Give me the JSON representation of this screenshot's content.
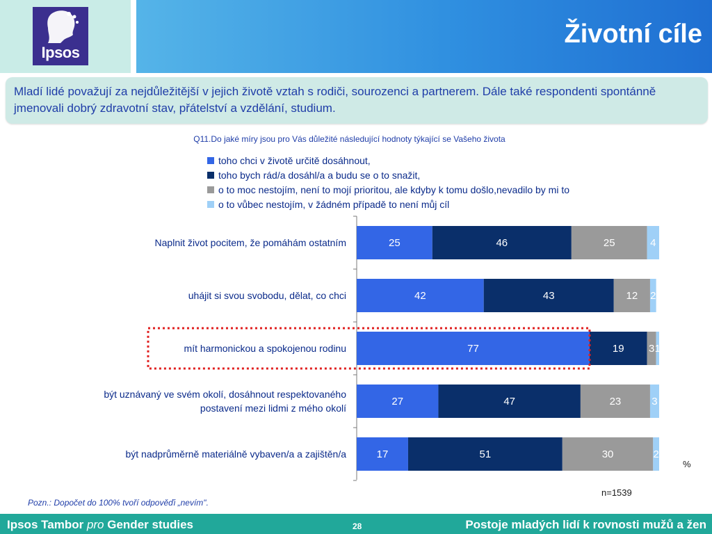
{
  "header": {
    "logo_text": "Ipsos",
    "title": "Životní cíle"
  },
  "summary": "Mladí lidé považují za nejdůležitější v jejich životě vztah s rodiči, sourozenci a partnerem. Dále také respondenti spontánně jmenovali dobrý zdravotní stav, přátelství a vzdělání, studium.",
  "question": "Q11.Do jaké míry jsou pro Vás důležité následující hodnoty týkající se Vašeho života",
  "chart_data": {
    "type": "bar",
    "orientation": "horizontal",
    "stacked": true,
    "categories": [
      "Naplnit život pocitem, že pomáhám ostatním",
      "uhájit si svou svobodu, dělat, co chci",
      "mít harmonickou a spokojenou rodinu",
      "být uznávaný ve svém okolí, dosáhnout respektovaného postavení mezi lidmi z mého okolí",
      "být nadprůměrně materiálně vybaven/a a zajištěn/a"
    ],
    "series": [
      {
        "name": "toho chci v životě určitě dosáhnout,",
        "color": "#3366e6",
        "values": [
          25,
          42,
          77,
          27,
          17
        ]
      },
      {
        "name": "toho bych rád/a dosáhl/a a budu se o to snažit,",
        "color": "#0a2f6a",
        "values": [
          46,
          43,
          19,
          47,
          51
        ]
      },
      {
        "name": "o to moc nestojím, není to mojí prioritou, ale kdyby k tomu došlo,nevadilo by mi to",
        "color": "#9a9a9a",
        "values": [
          25,
          12,
          3,
          23,
          30
        ]
      },
      {
        "name": "o to vůbec nestojím, v žádném případě to není můj cíl",
        "color": "#9fd0f7",
        "values": [
          4,
          2,
          1,
          3,
          2
        ]
      }
    ],
    "value_unit": "%",
    "xlim": [
      0,
      100
    ],
    "legend_position": "top",
    "highlighted_category": "mít harmonickou a spokojenou rodinu"
  },
  "percent_label": "%",
  "sample_size": "n=1539",
  "note": "Pozn.: Dopočet do 100% tvoří odpověďi „nevím\".",
  "footer": {
    "brand": "Ipsos Tambor",
    "pro": "pro",
    "client": "Gender studies",
    "page_number": "28",
    "title": "Postoje mladých lidí k rovnosti mužů a žen"
  }
}
